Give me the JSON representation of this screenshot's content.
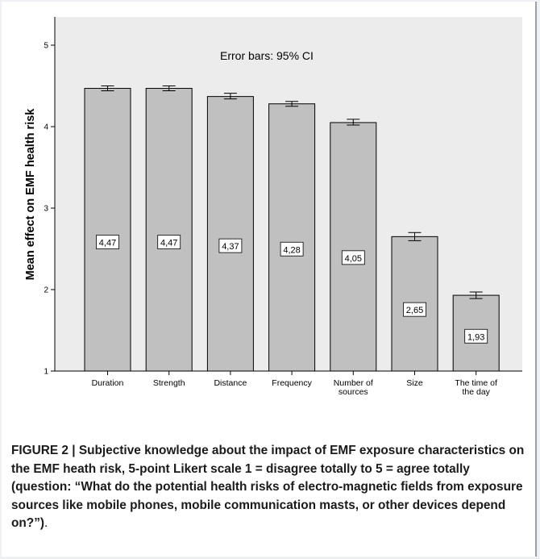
{
  "chart_data": {
    "type": "bar",
    "categories": [
      "Duration",
      "Strength",
      "Distance",
      "Frequency",
      "Number of sources",
      "Size",
      "The time of the day"
    ],
    "category_lines": [
      [
        "Duration"
      ],
      [
        "Strength"
      ],
      [
        "Distance"
      ],
      [
        "Frequency"
      ],
      [
        "Number of",
        "sources"
      ],
      [
        "Size"
      ],
      [
        "The time of",
        "the day"
      ]
    ],
    "values": [
      4.47,
      4.47,
      4.37,
      4.28,
      4.05,
      2.65,
      1.93
    ],
    "value_labels": [
      "4,47",
      "4,47",
      "4,37",
      "4,28",
      "4,05",
      "2,65",
      "1,93"
    ],
    "error_bars": [
      [
        4.44,
        4.5
      ],
      [
        4.44,
        4.5
      ],
      [
        4.34,
        4.41
      ],
      [
        4.25,
        4.31
      ],
      [
        4.02,
        4.09
      ],
      [
        2.6,
        2.7
      ],
      [
        1.89,
        1.97
      ]
    ],
    "title": "",
    "xlabel": "",
    "ylabel": "Mean effect on EMF health risk",
    "ylim": [
      1,
      5
    ],
    "yticks": [
      1,
      2,
      3,
      4,
      5
    ],
    "annotation": "Error bars: 95% CI",
    "grid": false,
    "colors": {
      "bar_fill": "#c0c0c0",
      "bar_stroke": "#000000",
      "plot_background": "#ececec"
    }
  },
  "caption": {
    "label": "FIGURE 2 | Subjective knowledge about the impact of EMF exposure characteristics on the EMF heath risk, 5-point Likert scale 1 = disagree totally to 5 = agree totally (question: “What do the potential health risks of electro-magnetic fields from exposure sources like mobile phones, mobile communication masts, or other devices depend on?”)",
    "end": "."
  }
}
